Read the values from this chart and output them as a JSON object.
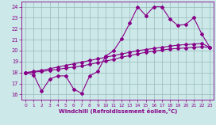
{
  "xlabel": "Windchill (Refroidissement éolien,°C)",
  "xlim": [
    -0.5,
    23.5
  ],
  "ylim": [
    15.5,
    24.5
  ],
  "yticks": [
    16,
    17,
    18,
    19,
    20,
    21,
    22,
    23,
    24
  ],
  "xticks": [
    0,
    1,
    2,
    3,
    4,
    5,
    6,
    7,
    8,
    9,
    10,
    11,
    12,
    13,
    14,
    15,
    16,
    17,
    18,
    19,
    20,
    21,
    22,
    23
  ],
  "bg_color": "#cce8e8",
  "line_color": "#880088",
  "grid_color": "#99bbbb",
  "line1_y": [
    18.0,
    17.8,
    16.3,
    17.4,
    17.7,
    17.7,
    16.5,
    16.1,
    17.7,
    18.1,
    19.5,
    20.0,
    21.1,
    22.5,
    24.0,
    23.2,
    24.0,
    24.0,
    22.9,
    22.3,
    22.4,
    23.0,
    21.5,
    20.3
  ],
  "line2_y": [
    18.0,
    18.05,
    18.1,
    18.2,
    18.3,
    18.4,
    18.5,
    18.6,
    18.75,
    18.9,
    19.05,
    19.2,
    19.4,
    19.55,
    19.7,
    19.85,
    19.95,
    20.05,
    20.15,
    20.2,
    20.25,
    20.3,
    20.35,
    20.3
  ],
  "line3_y": [
    18.0,
    18.1,
    18.2,
    18.35,
    18.5,
    18.65,
    18.8,
    18.95,
    19.1,
    19.25,
    19.4,
    19.55,
    19.7,
    19.85,
    20.0,
    20.1,
    20.2,
    20.3,
    20.4,
    20.5,
    20.55,
    20.6,
    20.65,
    20.3
  ]
}
